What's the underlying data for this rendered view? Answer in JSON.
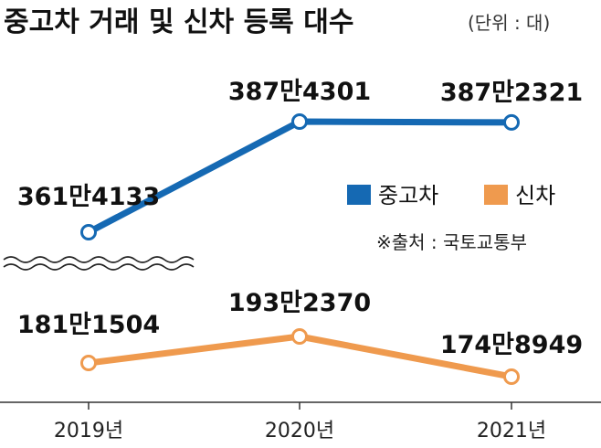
{
  "chart_data": {
    "type": "line",
    "title": "중고차 거래 및 신차 등록 대수",
    "unit": "(단위 : 대)",
    "categories": [
      "2019년",
      "2020년",
      "2021년"
    ],
    "series": [
      {
        "name": "중고차",
        "color": "#1569b3",
        "values": [
          3614133,
          3874301,
          3872321
        ],
        "labels": [
          "361만4133",
          "387만4301",
          "387만2321"
        ]
      },
      {
        "name": "신차",
        "color": "#ef9a4e",
        "values": [
          1811504,
          1932370,
          1748949
        ],
        "labels": [
          "181만1504",
          "193만2370",
          "174만8949"
        ]
      }
    ],
    "source": "※출처 : 국토교통부",
    "axis_break": true,
    "legend_position": "right",
    "grid": false
  }
}
